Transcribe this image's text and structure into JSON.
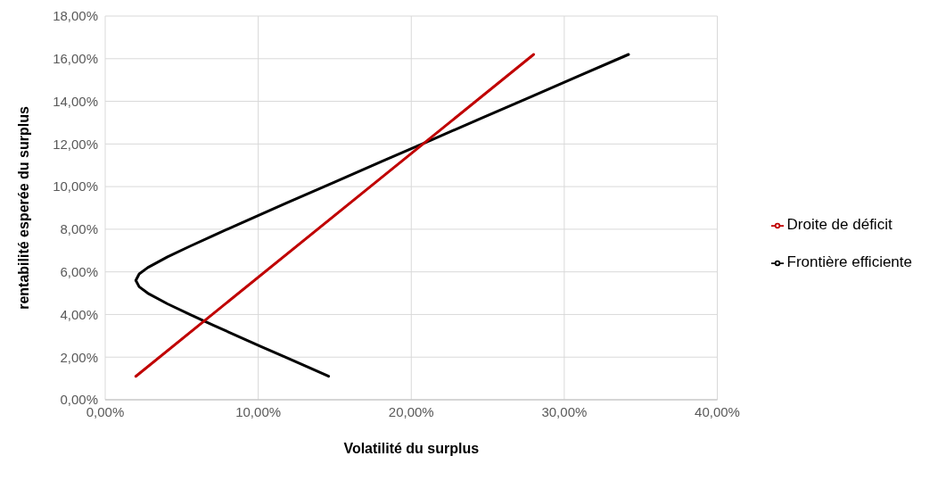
{
  "chart_data": {
    "type": "line",
    "xlabel": "Volatilité du surplus",
    "ylabel": "rentabilité esperée du surplus",
    "xlim": [
      0,
      40
    ],
    "xticks": [
      {
        "value": 0,
        "label": "0,00%"
      },
      {
        "value": 10,
        "label": "10,00%"
      },
      {
        "value": 20,
        "label": "20,00%"
      },
      {
        "value": 30,
        "label": "30,00%"
      },
      {
        "value": 40,
        "label": "40,00%"
      }
    ],
    "ylim": [
      0,
      18
    ],
    "yticks": [
      {
        "value": 0,
        "label": "0,00%"
      },
      {
        "value": 2,
        "label": "2,00%"
      },
      {
        "value": 4,
        "label": "4,00%"
      },
      {
        "value": 6,
        "label": "6,00%"
      },
      {
        "value": 8,
        "label": "8,00%"
      },
      {
        "value": 10,
        "label": "10,00%"
      },
      {
        "value": 12,
        "label": "12,00%"
      },
      {
        "value": 14,
        "label": "14,00%"
      },
      {
        "value": 16,
        "label": "16,00%"
      },
      {
        "value": 18,
        "label": "18,00%"
      }
    ],
    "grid": true,
    "legend": "right",
    "marker": "none",
    "line_style": "solid",
    "series": [
      {
        "name": "Frontière efficiente",
        "color": "#000000",
        "x": [
          14.6,
          13.35,
          11.76,
          10.18,
          8.61,
          7.05,
          5.53,
          4.07,
          2.78,
          2.22,
          2.0,
          2.22,
          2.78,
          4.07,
          5.53,
          7.05,
          8.61,
          11.76,
          14.95,
          18.14,
          21.35,
          24.56,
          27.77,
          30.98,
          34.2
        ],
        "values": [
          1.1,
          1.5,
          2.0,
          2.5,
          3.0,
          3.5,
          4.0,
          4.5,
          5.0,
          5.3,
          5.6,
          5.9,
          6.2,
          6.7,
          7.2,
          7.7,
          8.2,
          9.2,
          10.2,
          11.2,
          12.2,
          13.2,
          14.2,
          15.2,
          16.2
        ]
      },
      {
        "name": "Droite de déficit",
        "color": "#c00000",
        "x": [
          2.0,
          28.0
        ],
        "values": [
          1.1,
          16.2
        ]
      }
    ]
  }
}
